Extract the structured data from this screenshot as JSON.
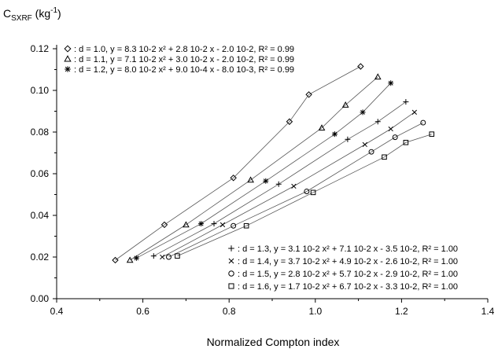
{
  "chart_data": {
    "type": "scatter",
    "title": "",
    "xlabel": "Normalized Compton index",
    "ylabel": "C",
    "ylabel_sub": "SXRF",
    "ylabel_unit_pre": " (kg",
    "ylabel_unit_sup": "-1",
    "ylabel_unit_post": ")",
    "xlim": [
      0.4,
      1.4
    ],
    "ylim": [
      0.0,
      0.12
    ],
    "x_ticks": [
      0.4,
      0.6,
      0.8,
      1.0,
      1.2,
      1.4
    ],
    "x_tick_labels": [
      "0.4",
      "0.6",
      "0.8",
      "1.0",
      "1.2",
      "1.4"
    ],
    "y_ticks": [
      0.0,
      0.02,
      0.04,
      0.06,
      0.08,
      0.1,
      0.12
    ],
    "y_tick_labels": [
      "0.00",
      "0.02",
      "0.04",
      "0.06",
      "0.08",
      "0.10",
      "0.12"
    ],
    "grid": false,
    "series": [
      {
        "marker": "diamond",
        "legend": ": d = 1.0, y = 8.3 10-2 x² + 2.8 10-2 x - 2.0 10-2, R² = 0.99",
        "x": [
          0.536,
          0.65,
          0.81,
          0.94,
          0.985,
          1.105
        ],
        "y": [
          0.0185,
          0.0355,
          0.058,
          0.085,
          0.098,
          0.1115
        ]
      },
      {
        "marker": "triangle",
        "legend": ": d = 1.1, y = 7.1 10-2 x² + 3.0 10-2 x - 2.0 10-2, R² = 0.99",
        "x": [
          0.57,
          0.7,
          0.85,
          1.015,
          1.07,
          1.145
        ],
        "y": [
          0.0185,
          0.0355,
          0.057,
          0.082,
          0.093,
          0.1065
        ]
      },
      {
        "marker": "star",
        "legend": ": d = 1.2, y = 8.0 10-2 x² + 9.0 10-4 x - 8.0 10-3, R² = 0.99",
        "x": [
          0.585,
          0.735,
          0.885,
          1.045,
          1.11,
          1.175
        ],
        "y": [
          0.0195,
          0.036,
          0.0565,
          0.079,
          0.0895,
          0.1035
        ]
      },
      {
        "marker": "plus",
        "legend": ": d = 1.3, y = 3.1 10-2 x² + 7.1 10-2 x - 3.5 10-2, R² = 1.00",
        "x": [
          0.625,
          0.765,
          0.915,
          1.075,
          1.145,
          1.21
        ],
        "y": [
          0.0205,
          0.036,
          0.055,
          0.0765,
          0.085,
          0.0945
        ]
      },
      {
        "marker": "cross",
        "legend": ": d = 1.4, y = 3.7 10-2 x² + 4.9 10-2 x - 2.6 10-2, R² = 1.00",
        "x": [
          0.645,
          0.785,
          0.95,
          1.115,
          1.175,
          1.23
        ],
        "y": [
          0.02,
          0.0355,
          0.054,
          0.074,
          0.0815,
          0.0895
        ]
      },
      {
        "marker": "circle",
        "legend": ": d = 1.5, y = 2.8 10-2 x² + 5.7 10-2 x - 2.9 10-2, R² = 1.00",
        "x": [
          0.66,
          0.81,
          0.98,
          1.13,
          1.185,
          1.25
        ],
        "y": [
          0.02,
          0.035,
          0.0515,
          0.0705,
          0.0775,
          0.0845
        ]
      },
      {
        "marker": "square",
        "legend": ": d = 1.6, y = 1.7 10-2 x² + 6.7 10-2 x - 3.3 10-2, R² = 1.00",
        "x": [
          0.68,
          0.84,
          0.995,
          1.16,
          1.21,
          1.27
        ],
        "y": [
          0.0205,
          0.035,
          0.051,
          0.068,
          0.075,
          0.079
        ]
      }
    ],
    "legend_groups": [
      {
        "placement": "top-left",
        "series": [
          0,
          1,
          2
        ]
      },
      {
        "placement": "bottom-right",
        "series": [
          3,
          4,
          5,
          6
        ]
      }
    ]
  }
}
